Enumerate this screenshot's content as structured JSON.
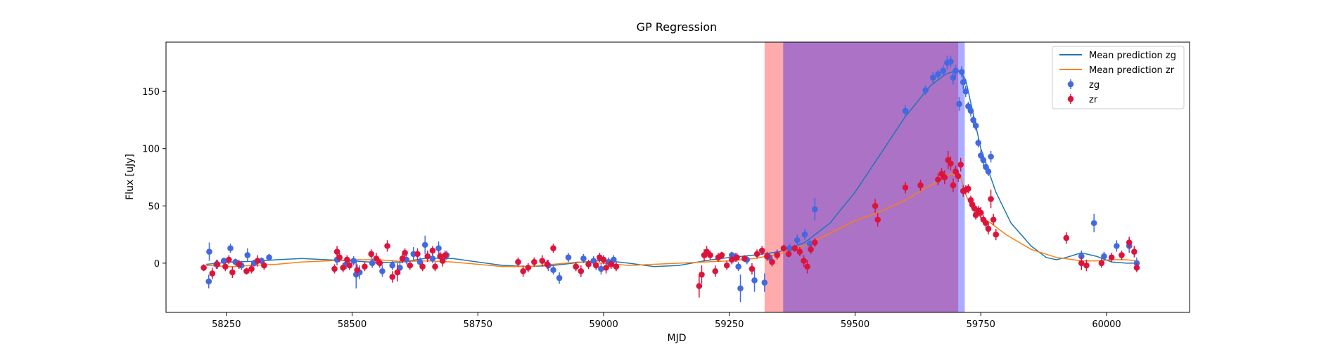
{
  "chart_data": {
    "type": "scatter",
    "title": "GP Regression",
    "xlabel": "MJD",
    "ylabel": "Flux [uJy]",
    "xlim": [
      58130,
      60165
    ],
    "ylim": [
      -43,
      193
    ],
    "xticks": [
      58250,
      58500,
      58750,
      59000,
      59250,
      59500,
      59750,
      60000
    ],
    "yticks": [
      0,
      50,
      100,
      150
    ],
    "grid": false,
    "legend_position": "top-right",
    "legend": [
      {
        "label": "Mean prediction zg",
        "kind": "line",
        "color": "#1f77b4"
      },
      {
        "label": "Mean prediction zr",
        "kind": "line",
        "color": "#ff7f0e"
      },
      {
        "label": "zg",
        "kind": "errorbar",
        "color": "#4169e1"
      },
      {
        "label": "zr",
        "kind": "errorbar",
        "color": "#dc143c"
      }
    ],
    "shaded_regions": [
      {
        "x0": 59320,
        "x1": 59705,
        "color": "#ff0000",
        "opacity": 0.33
      },
      {
        "x0": 59357,
        "x1": 59718,
        "color": "#0000ff",
        "opacity": 0.33
      }
    ],
    "curves": [
      {
        "name": "Mean prediction zg",
        "color": "#1f77b4",
        "x": [
          58210,
          58260,
          58300,
          58350,
          58400,
          58450,
          58500,
          58550,
          58600,
          58650,
          58700,
          58750,
          58800,
          58850,
          58900,
          58950,
          59000,
          59050,
          59100,
          59150,
          59200,
          59250,
          59300,
          59350,
          59400,
          59450,
          59500,
          59550,
          59600,
          59650,
          59680,
          59700,
          59710,
          59720,
          59730,
          59750,
          59780,
          59810,
          59850,
          59880,
          59900,
          59920,
          59950,
          59980,
          60010,
          60040,
          60060
        ],
        "y": [
          -1,
          1,
          1.5,
          3,
          4,
          3,
          2,
          0.5,
          1,
          4.5,
          4,
          1,
          -2,
          -3,
          -2,
          0.5,
          2.5,
          0,
          -3,
          -2,
          2,
          5,
          7,
          10,
          18,
          35,
          62,
          95,
          128,
          155,
          165,
          168,
          167,
          160,
          140,
          100,
          62,
          35,
          15,
          5,
          3,
          5,
          9,
          6,
          1,
          0,
          0
        ]
      },
      {
        "name": "Mean prediction zr",
        "color": "#ff7f0e",
        "x": [
          58210,
          58260,
          58300,
          58350,
          58400,
          58450,
          58500,
          58550,
          58600,
          58650,
          58700,
          58750,
          58800,
          58850,
          58900,
          58950,
          59000,
          59050,
          59100,
          59150,
          59200,
          59250,
          59300,
          59350,
          59400,
          59450,
          59500,
          59550,
          59600,
          59650,
          59690,
          59710,
          59720,
          59730,
          59750,
          59770,
          59800,
          59850,
          59900,
          59950,
          59980,
          60010,
          60040,
          60060
        ],
        "y": [
          -2,
          -3,
          -2,
          -1,
          1,
          2,
          3,
          3,
          1.5,
          2,
          1,
          -1,
          -3,
          -3,
          -1,
          1,
          0,
          -2,
          -1,
          0,
          1,
          2,
          4,
          8,
          15,
          26,
          37,
          45,
          55,
          68,
          78,
          75,
          60,
          50,
          40,
          35,
          25,
          12,
          5,
          2,
          2,
          3,
          3,
          2
        ]
      }
    ],
    "series": [
      {
        "name": "zg",
        "color": "#4169e1",
        "points": [
          [
            58215,
            -16,
            6
          ],
          [
            58216,
            10,
            8
          ],
          [
            58230,
            -1,
            4
          ],
          [
            58245,
            2,
            3
          ],
          [
            58258,
            13,
            4
          ],
          [
            58268,
            1,
            3
          ],
          [
            58280,
            -2,
            4
          ],
          [
            58292,
            7,
            6
          ],
          [
            58305,
            0,
            3
          ],
          [
            58320,
            2,
            3
          ],
          [
            58335,
            5,
            3
          ],
          [
            58470,
            3,
            5
          ],
          [
            58488,
            -1,
            4
          ],
          [
            58503,
            2,
            4
          ],
          [
            58508,
            -10,
            12
          ],
          [
            58515,
            -8,
            6
          ],
          [
            58540,
            0,
            4
          ],
          [
            58560,
            -7,
            5
          ],
          [
            58580,
            -2,
            4
          ],
          [
            58595,
            -4,
            6
          ],
          [
            58608,
            3,
            4
          ],
          [
            58622,
            8,
            6
          ],
          [
            58635,
            1,
            4
          ],
          [
            58645,
            16,
            8
          ],
          [
            58660,
            4,
            4
          ],
          [
            58672,
            13,
            6
          ],
          [
            58688,
            7,
            4
          ],
          [
            58890,
            -2,
            5
          ],
          [
            58900,
            -6,
            4
          ],
          [
            58912,
            -13,
            5
          ],
          [
            58930,
            5,
            4
          ],
          [
            58945,
            -3,
            3
          ],
          [
            58960,
            4,
            4
          ],
          [
            58980,
            2,
            4
          ],
          [
            58995,
            -5,
            5
          ],
          [
            59010,
            1,
            4
          ],
          [
            59020,
            3,
            4
          ],
          [
            59255,
            7,
            3
          ],
          [
            59262,
            5,
            4
          ],
          [
            59268,
            -3,
            4
          ],
          [
            59272,
            -22,
            12
          ],
          [
            59285,
            3,
            4
          ],
          [
            59300,
            -15,
            10
          ],
          [
            59320,
            -17,
            8
          ],
          [
            59330,
            5,
            4
          ],
          [
            59345,
            8,
            4
          ],
          [
            59370,
            13,
            4
          ],
          [
            59385,
            20,
            5
          ],
          [
            59400,
            25,
            5
          ],
          [
            59410,
            17,
            5
          ],
          [
            59420,
            47,
            10
          ],
          [
            59600,
            133,
            5
          ],
          [
            59640,
            151,
            4
          ],
          [
            59655,
            162,
            5
          ],
          [
            59665,
            165,
            4
          ],
          [
            59675,
            168,
            5
          ],
          [
            59683,
            175,
            6
          ],
          [
            59690,
            176,
            5
          ],
          [
            59695,
            162,
            6
          ],
          [
            59700,
            168,
            5
          ],
          [
            59707,
            139,
            6
          ],
          [
            59712,
            167,
            5
          ],
          [
            59715,
            158,
            6
          ],
          [
            59720,
            150,
            5
          ],
          [
            59725,
            137,
            4
          ],
          [
            59730,
            133,
            5
          ],
          [
            59735,
            125,
            4
          ],
          [
            59740,
            120,
            4
          ],
          [
            59745,
            105,
            4
          ],
          [
            59750,
            94,
            5
          ],
          [
            59755,
            90,
            5
          ],
          [
            59760,
            84,
            4
          ],
          [
            59765,
            80,
            4
          ],
          [
            59770,
            93,
            5
          ],
          [
            59950,
            6,
            5
          ],
          [
            59975,
            35,
            8
          ],
          [
            59995,
            6,
            4
          ],
          [
            60020,
            15,
            5
          ],
          [
            60045,
            15,
            6
          ],
          [
            60060,
            0,
            5
          ]
        ]
      },
      {
        "name": "zr",
        "color": "#dc143c",
        "points": [
          [
            58205,
            -4,
            3
          ],
          [
            58222,
            -9,
            5
          ],
          [
            58232,
            -1,
            4
          ],
          [
            58248,
            -3,
            4
          ],
          [
            58255,
            3,
            4
          ],
          [
            58262,
            -8,
            5
          ],
          [
            58275,
            -1,
            4
          ],
          [
            58290,
            -7,
            3
          ],
          [
            58300,
            -5,
            4
          ],
          [
            58312,
            2,
            5
          ],
          [
            58325,
            -2,
            4
          ],
          [
            58465,
            -5,
            4
          ],
          [
            58470,
            10,
            5
          ],
          [
            58475,
            5,
            4
          ],
          [
            58482,
            -4,
            4
          ],
          [
            58490,
            3,
            4
          ],
          [
            58495,
            -2,
            4
          ],
          [
            58510,
            -6,
            5
          ],
          [
            58525,
            -3,
            4
          ],
          [
            58538,
            8,
            4
          ],
          [
            58548,
            4,
            5
          ],
          [
            58555,
            0,
            4
          ],
          [
            58570,
            15,
            5
          ],
          [
            58580,
            -12,
            5
          ],
          [
            58590,
            -8,
            8
          ],
          [
            58600,
            4,
            4
          ],
          [
            58605,
            9,
            4
          ],
          [
            58615,
            -2,
            4
          ],
          [
            58630,
            8,
            5
          ],
          [
            58640,
            -3,
            4
          ],
          [
            58650,
            6,
            5
          ],
          [
            58660,
            11,
            4
          ],
          [
            58665,
            -3,
            4
          ],
          [
            58675,
            6,
            4
          ],
          [
            58680,
            2,
            5
          ],
          [
            58685,
            7,
            4
          ],
          [
            58830,
            1,
            4
          ],
          [
            58840,
            -7,
            5
          ],
          [
            58850,
            -4,
            4
          ],
          [
            58862,
            1,
            4
          ],
          [
            58878,
            2,
            5
          ],
          [
            58888,
            -1,
            4
          ],
          [
            58900,
            13,
            4
          ],
          [
            58945,
            -3,
            4
          ],
          [
            58955,
            -7,
            5
          ],
          [
            58970,
            -1,
            4
          ],
          [
            58985,
            -2,
            4
          ],
          [
            58992,
            5,
            4
          ],
          [
            59000,
            3,
            4
          ],
          [
            59005,
            -4,
            5
          ],
          [
            59015,
            -1,
            4
          ],
          [
            59025,
            -3,
            4
          ],
          [
            59190,
            -20,
            10
          ],
          [
            59195,
            -10,
            8
          ],
          [
            59200,
            7,
            5
          ],
          [
            59205,
            10,
            5
          ],
          [
            59212,
            7,
            4
          ],
          [
            59222,
            -7,
            5
          ],
          [
            59228,
            5,
            4
          ],
          [
            59235,
            7,
            3
          ],
          [
            59245,
            -2,
            4
          ],
          [
            59255,
            3,
            4
          ],
          [
            59265,
            5,
            4
          ],
          [
            59280,
            4,
            3
          ],
          [
            59295,
            -5,
            5
          ],
          [
            59305,
            8,
            4
          ],
          [
            59315,
            11,
            4
          ],
          [
            59325,
            6,
            4
          ],
          [
            59335,
            1,
            4
          ],
          [
            59345,
            7,
            4
          ],
          [
            59358,
            13,
            3
          ],
          [
            59368,
            8,
            3
          ],
          [
            59380,
            13,
            3
          ],
          [
            59390,
            10,
            4
          ],
          [
            59398,
            2,
            5
          ],
          [
            59405,
            -3,
            6
          ],
          [
            59412,
            12,
            4
          ],
          [
            59420,
            18,
            4
          ],
          [
            59540,
            50,
            6
          ],
          [
            59545,
            38,
            6
          ],
          [
            59600,
            66,
            5
          ],
          [
            59630,
            68,
            5
          ],
          [
            59665,
            73,
            5
          ],
          [
            59672,
            78,
            5
          ],
          [
            59678,
            75,
            6
          ],
          [
            59685,
            90,
            8
          ],
          [
            59690,
            87,
            6
          ],
          [
            59695,
            68,
            6
          ],
          [
            59700,
            80,
            5
          ],
          [
            59705,
            76,
            5
          ],
          [
            59710,
            86,
            6
          ],
          [
            59715,
            63,
            5
          ],
          [
            59720,
            64,
            4
          ],
          [
            59725,
            65,
            4
          ],
          [
            59730,
            55,
            4
          ],
          [
            59733,
            51,
            5
          ],
          [
            59737,
            48,
            5
          ],
          [
            59740,
            42,
            4
          ],
          [
            59745,
            46,
            4
          ],
          [
            59750,
            44,
            5
          ],
          [
            59755,
            38,
            4
          ],
          [
            59760,
            35,
            4
          ],
          [
            59765,
            30,
            5
          ],
          [
            59770,
            56,
            8
          ],
          [
            59775,
            38,
            5
          ],
          [
            59780,
            25,
            5
          ],
          [
            59920,
            22,
            5
          ],
          [
            59950,
            0,
            6
          ],
          [
            59960,
            -2,
            5
          ],
          [
            59990,
            0,
            4
          ],
          [
            60010,
            5,
            4
          ],
          [
            60030,
            7,
            4
          ],
          [
            60045,
            18,
            5
          ],
          [
            60055,
            10,
            5
          ],
          [
            60060,
            -4,
            4
          ]
        ]
      }
    ]
  }
}
